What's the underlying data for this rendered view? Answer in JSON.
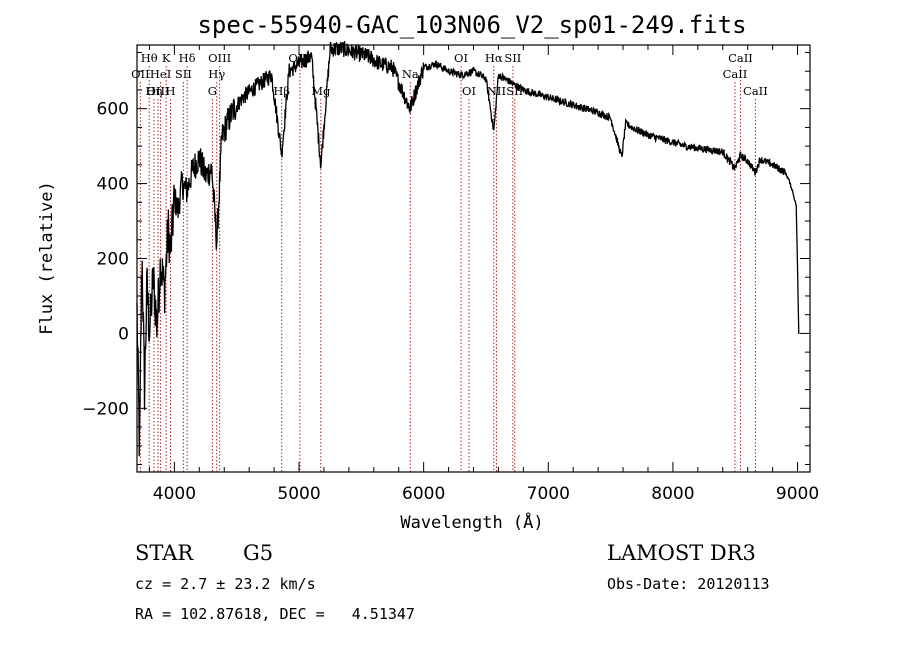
{
  "chart_data": {
    "type": "line",
    "title": "spec-55940-GAC_103N06_V2_sp01-249.fits",
    "xlabel": "Wavelength (Å)",
    "ylabel": "Flux (relative)",
    "xlim": [
      3700,
      9100
    ],
    "ylim": [
      -370,
      770
    ],
    "x_ticks": [
      4000,
      5000,
      6000,
      7000,
      8000,
      9000
    ],
    "x_tick_labels": [
      "4000",
      "5000",
      "6000",
      "7000",
      "8000",
      "9000"
    ],
    "y_ticks": [
      -200,
      0,
      200,
      400,
      600
    ],
    "y_tick_labels": [
      "−200",
      "0",
      "200",
      "400",
      "600"
    ],
    "series": [
      {
        "name": "flux",
        "x": [
          3700,
          3720,
          3740,
          3760,
          3780,
          3800,
          3830,
          3860,
          3890,
          3920,
          3950,
          3970,
          4000,
          4030,
          4060,
          4100,
          4150,
          4200,
          4250,
          4300,
          4340,
          4380,
          4420,
          4480,
          4550,
          4620,
          4700,
          4780,
          4861,
          4920,
          5000,
          5100,
          5175,
          5250,
          5350,
          5450,
          5550,
          5650,
          5750,
          5890,
          6000,
          6100,
          6200,
          6300,
          6400,
          6500,
          6563,
          6600,
          6700,
          6800,
          6900,
          7000,
          7100,
          7200,
          7300,
          7400,
          7500,
          7590,
          7620,
          7700,
          7800,
          7900,
          8000,
          8100,
          8200,
          8300,
          8400,
          8498,
          8542,
          8600,
          8662,
          8700,
          8800,
          8850,
          8900,
          8930,
          8960,
          8990,
          9010
        ],
        "y": [
          60,
          -320,
          220,
          -150,
          130,
          0,
          150,
          20,
          200,
          110,
          280,
          220,
          360,
          330,
          400,
          380,
          440,
          470,
          420,
          440,
          240,
          520,
          560,
          600,
          630,
          650,
          670,
          690,
          480,
          700,
          720,
          740,
          450,
          760,
          760,
          750,
          740,
          720,
          710,
          600,
          710,
          720,
          700,
          690,
          700,
          680,
          540,
          690,
          670,
          650,
          640,
          630,
          620,
          610,
          600,
          590,
          575,
          470,
          560,
          545,
          530,
          520,
          510,
          500,
          495,
          490,
          485,
          440,
          475,
          460,
          430,
          465,
          450,
          440,
          430,
          410,
          380,
          340,
          0
        ]
      }
    ],
    "lines": [
      {
        "name": "Hθ",
        "x": 3798,
        "row": 1
      },
      {
        "name": "Hη",
        "x": 3836,
        "row": 3
      },
      {
        "name": "OII",
        "x": 3727,
        "row": 2
      },
      {
        "name": "OIII",
        "x": 3869,
        "row": 3
      },
      {
        "name": "HeI",
        "x": 3889,
        "row": 2
      },
      {
        "name": "K",
        "x": 3934,
        "row": 1
      },
      {
        "name": "H",
        "x": 3969,
        "row": 3
      },
      {
        "name": "SII",
        "x": 4072,
        "row": 2
      },
      {
        "name": "Hδ",
        "x": 4102,
        "row": 1
      },
      {
        "name": "OIII",
        "x": 4363,
        "row": 1
      },
      {
        "name": "Hγ",
        "x": 4340,
        "row": 2
      },
      {
        "name": "G",
        "x": 4305,
        "row": 3
      },
      {
        "name": "OIII",
        "x": 5007,
        "row": 1
      },
      {
        "name": "Hβ",
        "x": 4861,
        "row": 3
      },
      {
        "name": "Mg",
        "x": 5175,
        "row": 3
      },
      {
        "name": "Na",
        "x": 5893,
        "row": 2
      },
      {
        "name": "OI",
        "x": 6300,
        "row": 1
      },
      {
        "name": "OI",
        "x": 6364,
        "row": 3
      },
      {
        "name": "Hα",
        "x": 6563,
        "row": 1
      },
      {
        "name": "SII",
        "x": 6716,
        "row": 1
      },
      {
        "name": "NII",
        "x": 6584,
        "row": 3
      },
      {
        "name": "SII",
        "x": 6731,
        "row": 3
      },
      {
        "name": "CaII",
        "x": 8542,
        "row": 1
      },
      {
        "name": "CaII",
        "x": 8498,
        "row": 2
      },
      {
        "name": "CaII",
        "x": 8662,
        "row": 3
      }
    ]
  },
  "info": {
    "object": "STAR",
    "subclass": "G5",
    "survey": "LAMOST DR3",
    "cz": "cz = 2.7 ± 23.2 km/s",
    "obs_date": "Obs-Date: 20120113",
    "coords": "RA = 102.87618, DEC =   4.51347"
  },
  "colors": {
    "spectrum": "#000000",
    "line_marker": "#b22222",
    "axis": "#000000"
  }
}
